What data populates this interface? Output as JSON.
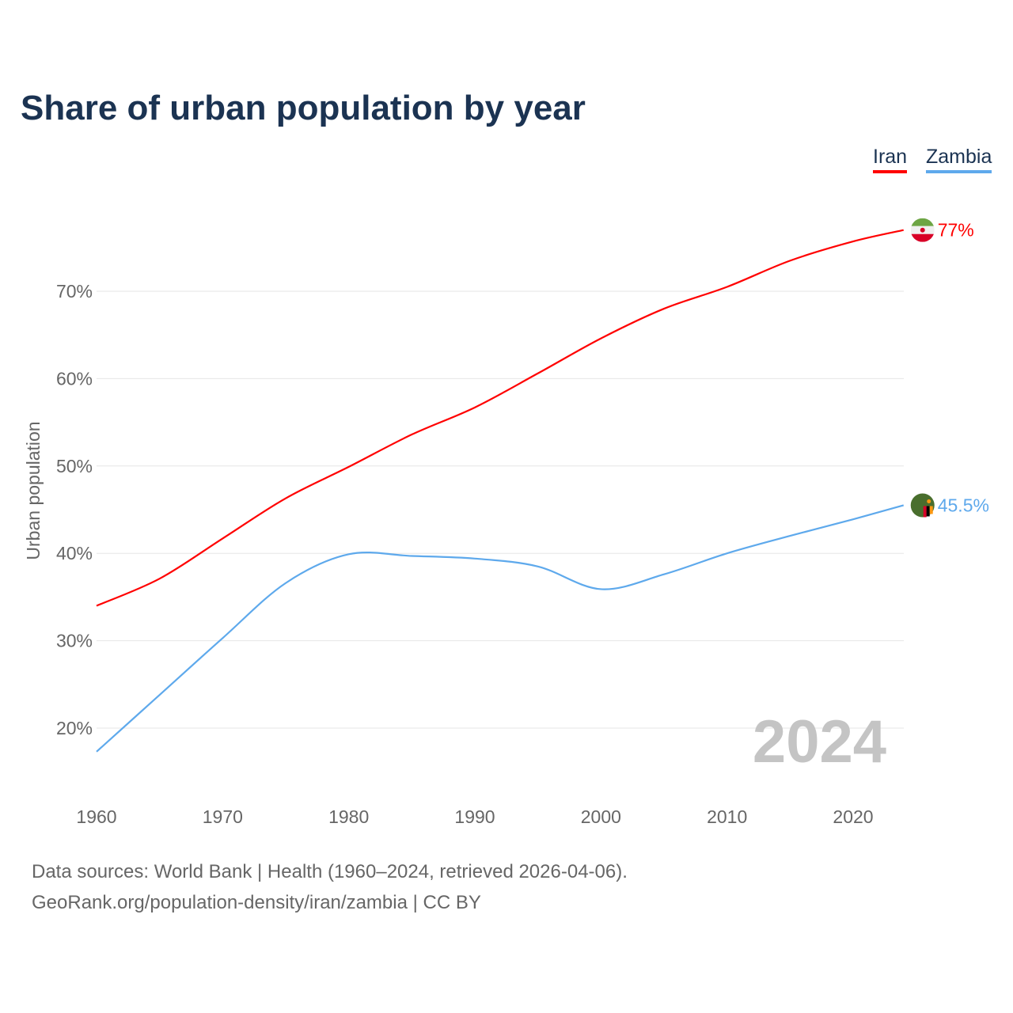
{
  "chart_data": {
    "type": "line",
    "title": "Share of urban population by year",
    "xlabel": "",
    "ylabel": "Urban population",
    "xlim": [
      1960,
      2024
    ],
    "ylim": [
      14,
      80
    ],
    "x_ticks": [
      1960,
      1970,
      1980,
      1990,
      2000,
      2010,
      2020
    ],
    "y_ticks": [
      20,
      30,
      40,
      50,
      60,
      70
    ],
    "y_tick_labels": [
      "20%",
      "30%",
      "40%",
      "50%",
      "60%",
      "70%"
    ],
    "x_tick_labels": [
      "1960",
      "1970",
      "1980",
      "1990",
      "2000",
      "2010",
      "2020"
    ],
    "grid": true,
    "legend": "top-right",
    "x": [
      1960,
      1965,
      1970,
      1975,
      1980,
      1985,
      1990,
      1995,
      2000,
      2005,
      2010,
      2015,
      2020,
      2024
    ],
    "series": [
      {
        "name": "Iran",
        "color": "#ff0000",
        "end_label": "77%",
        "values": [
          34.0,
          37.1,
          41.7,
          46.3,
          49.9,
          53.6,
          56.7,
          60.6,
          64.6,
          68.0,
          70.5,
          73.5,
          75.7,
          77.0
        ]
      },
      {
        "name": "Zambia",
        "color": "#5ea9ec",
        "end_label": "45.5%",
        "values": [
          17.3,
          23.8,
          30.3,
          36.6,
          39.9,
          39.7,
          39.4,
          38.5,
          35.9,
          37.6,
          40.0,
          42.0,
          43.9,
          45.5
        ]
      }
    ],
    "year_watermark": "2024"
  },
  "footer": {
    "line1": "Data sources: World Bank | Health (1960–2024, retrieved 2026-04-06).",
    "line2": "GeoRank.org/population-density/iran/zambia | CC BY"
  }
}
